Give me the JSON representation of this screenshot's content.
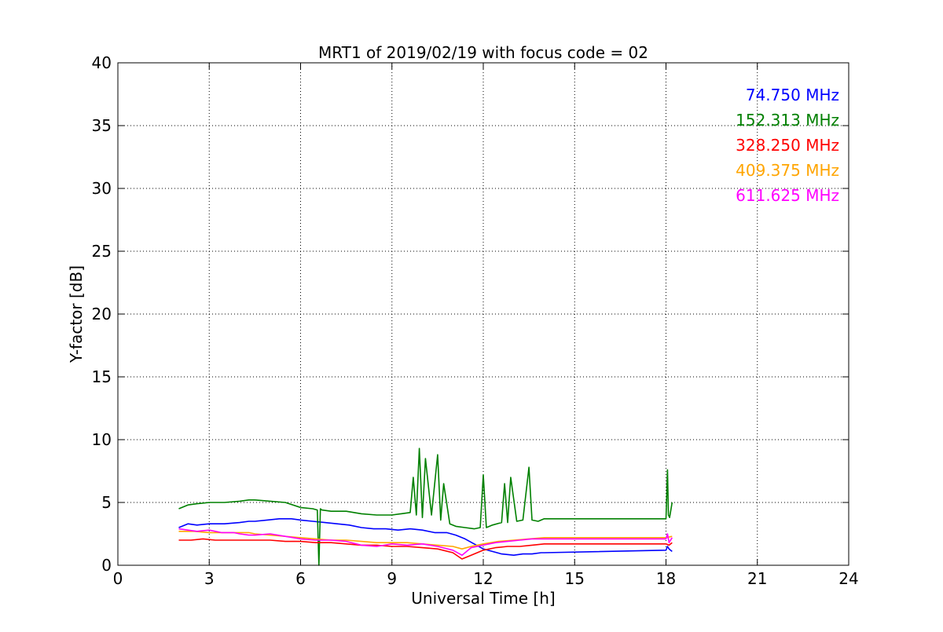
{
  "chart_data": {
    "type": "line",
    "title": "MRT1 of 2019/02/19 with focus code = 02",
    "xlabel": "Universal Time [h]",
    "ylabel": "Y-factor [dB]",
    "xlim": [
      0,
      24
    ],
    "ylim": [
      0,
      40
    ],
    "xticks": [
      0,
      3,
      6,
      9,
      12,
      15,
      18,
      21,
      24
    ],
    "yticks": [
      0,
      5,
      10,
      15,
      20,
      25,
      30,
      35,
      40
    ],
    "xtick_labels": [
      "0",
      "3",
      "6",
      "9",
      "12",
      "15",
      "18",
      "21",
      "24"
    ],
    "ytick_labels": [
      "0",
      "5",
      "10",
      "15",
      "20",
      "25",
      "30",
      "35",
      "40"
    ],
    "grid": true,
    "legend_position": "top-right",
    "series": [
      {
        "name": "74.750 MHz",
        "color": "#0000ff",
        "x": [
          2.0,
          2.3,
          2.6,
          3.0,
          3.5,
          4.0,
          4.3,
          4.5,
          4.9,
          5.3,
          5.7,
          6.0,
          6.4,
          6.8,
          7.2,
          7.6,
          8.0,
          8.4,
          8.8,
          9.2,
          9.6,
          10.0,
          10.4,
          10.8,
          11.1,
          11.4,
          11.7,
          12.0,
          12.3,
          12.6,
          13.0,
          13.3,
          13.6,
          13.9,
          14.0,
          18.0,
          18.05,
          18.1,
          18.2
        ],
        "y": [
          3.0,
          3.3,
          3.2,
          3.3,
          3.3,
          3.4,
          3.5,
          3.5,
          3.6,
          3.7,
          3.7,
          3.6,
          3.5,
          3.4,
          3.3,
          3.2,
          3.0,
          2.9,
          2.9,
          2.8,
          2.9,
          2.8,
          2.6,
          2.6,
          2.4,
          2.1,
          1.7,
          1.3,
          1.1,
          0.9,
          0.8,
          0.9,
          0.9,
          1.0,
          1.0,
          1.2,
          1.5,
          1.3,
          1.1
        ]
      },
      {
        "name": "152.313 MHz",
        "color": "#008000",
        "x": [
          2.0,
          2.3,
          2.6,
          3.0,
          3.5,
          4.0,
          4.3,
          4.5,
          5.0,
          5.5,
          6.0,
          6.4,
          6.55,
          6.6,
          6.65,
          6.7,
          7.0,
          7.5,
          8.0,
          8.5,
          9.0,
          9.3,
          9.6,
          9.7,
          9.8,
          9.9,
          10.0,
          10.1,
          10.3,
          10.5,
          10.6,
          10.7,
          10.9,
          11.1,
          11.4,
          11.7,
          11.9,
          12.0,
          12.1,
          12.3,
          12.6,
          12.7,
          12.8,
          12.9,
          13.1,
          13.3,
          13.5,
          13.6,
          13.8,
          14.0,
          18.0,
          18.05,
          18.08,
          18.12,
          18.2
        ],
        "y": [
          4.5,
          4.8,
          4.9,
          5.0,
          5.0,
          5.1,
          5.2,
          5.2,
          5.1,
          5.0,
          4.6,
          4.5,
          4.4,
          0.0,
          4.5,
          4.4,
          4.3,
          4.3,
          4.1,
          4.0,
          4.0,
          4.1,
          4.2,
          7.0,
          4.0,
          9.3,
          3.8,
          8.5,
          4.0,
          8.8,
          3.6,
          6.5,
          3.3,
          3.1,
          3.0,
          2.9,
          3.0,
          7.2,
          3.0,
          3.2,
          3.4,
          6.5,
          3.4,
          7.0,
          3.5,
          3.6,
          7.8,
          3.6,
          3.5,
          3.7,
          3.7,
          7.6,
          4.0,
          3.8,
          5.0
        ]
      },
      {
        "name": "328.250 MHz",
        "color": "#ff0000",
        "x": [
          2.0,
          2.4,
          2.8,
          3.2,
          3.6,
          4.0,
          4.3,
          4.5,
          5.0,
          5.5,
          6.0,
          6.5,
          7.0,
          7.5,
          8.0,
          8.5,
          9.0,
          9.5,
          10.0,
          10.5,
          11.0,
          11.3,
          11.6,
          12.0,
          12.4,
          12.8,
          13.2,
          13.6,
          14.0,
          18.0,
          18.1,
          18.2
        ],
        "y": [
          2.0,
          2.0,
          2.1,
          2.0,
          2.0,
          2.0,
          2.0,
          2.0,
          2.0,
          1.9,
          1.9,
          1.8,
          1.8,
          1.7,
          1.6,
          1.6,
          1.5,
          1.5,
          1.4,
          1.3,
          1.0,
          0.5,
          0.8,
          1.2,
          1.4,
          1.5,
          1.5,
          1.6,
          1.7,
          1.7,
          1.6,
          1.8
        ]
      },
      {
        "name": "409.375 MHz",
        "color": "#ffa500",
        "x": [
          2.0,
          2.5,
          3.0,
          3.5,
          4.0,
          4.3,
          4.5,
          5.0,
          5.5,
          6.0,
          6.5,
          7.0,
          7.5,
          8.0,
          8.5,
          9.0,
          9.5,
          10.0,
          10.5,
          11.0,
          11.3,
          11.6,
          12.0,
          12.5,
          13.0,
          13.5,
          14.0,
          18.0,
          18.2
        ],
        "y": [
          2.7,
          2.7,
          2.6,
          2.6,
          2.6,
          2.6,
          2.5,
          2.4,
          2.3,
          2.2,
          2.1,
          2.0,
          2.0,
          1.9,
          1.8,
          1.8,
          1.8,
          1.7,
          1.6,
          1.5,
          1.3,
          1.5,
          1.7,
          1.9,
          2.0,
          2.1,
          2.2,
          2.2,
          2.3
        ]
      },
      {
        "name": "611.625 MHz",
        "color": "#ff00ff",
        "x": [
          2.0,
          2.3,
          2.6,
          3.0,
          3.4,
          3.8,
          4.0,
          4.3,
          4.5,
          5.0,
          5.5,
          6.0,
          6.5,
          7.0,
          7.5,
          8.0,
          8.5,
          9.0,
          9.5,
          10.0,
          10.5,
          11.0,
          11.3,
          11.6,
          12.0,
          12.4,
          12.8,
          13.2,
          13.6,
          14.0,
          18.0,
          18.05,
          18.1,
          18.2
        ],
        "y": [
          2.9,
          2.8,
          2.7,
          2.8,
          2.6,
          2.6,
          2.5,
          2.4,
          2.4,
          2.5,
          2.3,
          2.1,
          2.0,
          2.0,
          1.9,
          1.6,
          1.5,
          1.7,
          1.6,
          1.7,
          1.5,
          1.2,
          0.8,
          1.4,
          1.6,
          1.8,
          1.9,
          2.0,
          2.1,
          2.1,
          2.1,
          2.5,
          1.8,
          2.2
        ]
      }
    ]
  }
}
